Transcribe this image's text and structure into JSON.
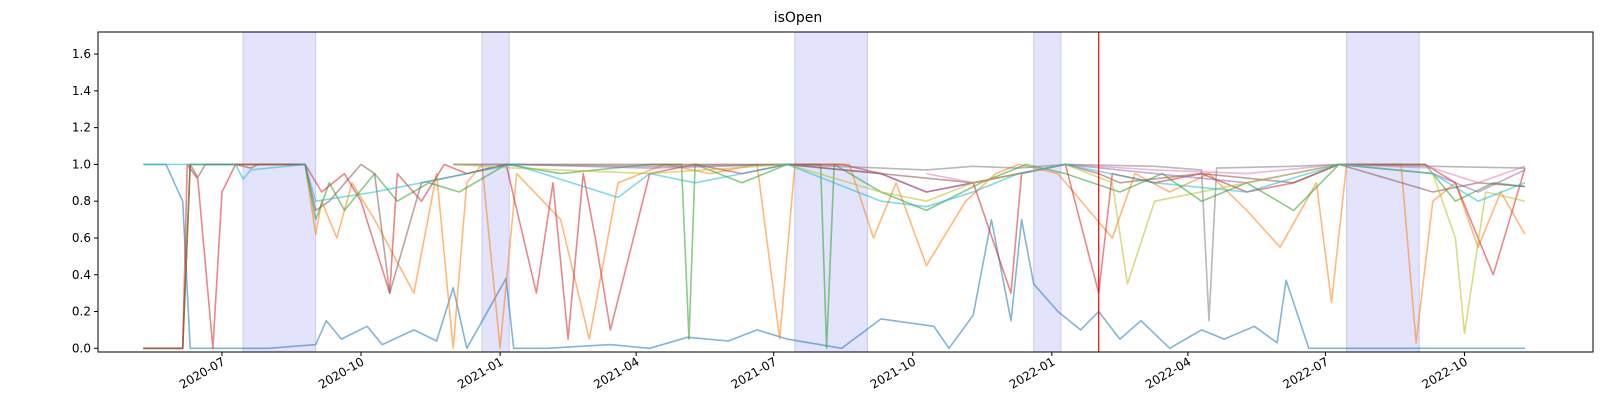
{
  "chart_data": {
    "type": "line",
    "title": "isOpen",
    "xlabel": "",
    "ylabel": "",
    "x_type": "date",
    "xlim": [
      "2020-04-10",
      "2022-12-25"
    ],
    "ylim": [
      -0.02,
      1.72
    ],
    "x_ticks": [
      "2020-07",
      "2020-10",
      "2021-01",
      "2021-04",
      "2021-07",
      "2021-10",
      "2022-01",
      "2022-04",
      "2022-07",
      "2022-10"
    ],
    "y_ticks": [
      "0.0",
      "0.2",
      "0.4",
      "0.6",
      "0.8",
      "1.0",
      "1.2",
      "1.4",
      "1.6"
    ],
    "grid": false,
    "legend": "none",
    "shaded_spans": [
      {
        "start": "2020-07-15",
        "end": "2020-09-01"
      },
      {
        "start": "2020-12-20",
        "end": "2021-01-07"
      },
      {
        "start": "2021-07-15",
        "end": "2021-09-01"
      },
      {
        "start": "2021-12-20",
        "end": "2022-01-07"
      },
      {
        "start": "2022-07-15",
        "end": "2022-09-01"
      }
    ],
    "shade_color": "#e3e3fc",
    "shade_edge": "#c9c9f5",
    "vline": {
      "x": "2022-02-01",
      "color": "#ff0000"
    },
    "series": [
      {
        "color": "#1f77b4",
        "dates": [
          "2020-05-10",
          "2020-05-25",
          "2020-06-05",
          "2020-06-10",
          "2020-07-10",
          "2020-08-01",
          "2020-09-01",
          "2020-09-08",
          "2020-09-18",
          "2020-10-05",
          "2020-10-15",
          "2020-11-05",
          "2020-11-20",
          "2020-12-01",
          "2020-12-10",
          "2021-01-05",
          "2021-01-10",
          "2021-02-01",
          "2021-03-15",
          "2021-04-10",
          "2021-05-05",
          "2021-06-01",
          "2021-06-20",
          "2021-07-10",
          "2021-08-15",
          "2021-09-10",
          "2021-10-15",
          "2021-10-25",
          "2021-11-10",
          "2021-11-22",
          "2021-12-05",
          "2021-12-12",
          "2021-12-20",
          "2022-01-05",
          "2022-01-20",
          "2022-02-01",
          "2022-02-15",
          "2022-03-01",
          "2022-03-20",
          "2022-04-10",
          "2022-04-25",
          "2022-05-15",
          "2022-05-30",
          "2022-06-05",
          "2022-06-20",
          "2022-07-20",
          "2022-08-25",
          "2022-09-10",
          "2022-10-15",
          "2022-11-10"
        ],
        "values": [
          1.0,
          1.0,
          0.8,
          0.0,
          0.0,
          0.0,
          0.02,
          0.15,
          0.05,
          0.12,
          0.02,
          0.1,
          0.04,
          0.33,
          0.0,
          0.38,
          0.0,
          0.0,
          0.02,
          0.0,
          0.06,
          0.04,
          0.1,
          0.05,
          0.0,
          0.16,
          0.12,
          0.0,
          0.18,
          0.7,
          0.15,
          0.7,
          0.35,
          0.2,
          0.1,
          0.2,
          0.05,
          0.15,
          0.0,
          0.1,
          0.05,
          0.12,
          0.03,
          0.37,
          0.0,
          0.0,
          0.0,
          0.0,
          0.0,
          0.0
        ]
      },
      {
        "color": "#ff7f0e",
        "dates": [
          "2020-05-10",
          "2020-06-05",
          "2020-06-10",
          "2020-07-10",
          "2020-07-20",
          "2020-08-25",
          "2020-09-01",
          "2020-09-05",
          "2020-09-15",
          "2020-09-25",
          "2020-10-10",
          "2020-11-05",
          "2020-11-20",
          "2020-12-01",
          "2020-12-10",
          "2020-12-20",
          "2021-01-01",
          "2021-01-12",
          "2021-02-10",
          "2021-03-01",
          "2021-03-20",
          "2021-04-20",
          "2021-05-20",
          "2021-06-20",
          "2021-07-05",
          "2021-07-15",
          "2021-08-20",
          "2021-09-05",
          "2021-09-20",
          "2021-10-10",
          "2021-11-05",
          "2021-11-25",
          "2021-12-10",
          "2022-01-05",
          "2022-02-10",
          "2022-02-25",
          "2022-03-20",
          "2022-04-15",
          "2022-05-10",
          "2022-06-01",
          "2022-06-25",
          "2022-07-05",
          "2022-07-15",
          "2022-08-20",
          "2022-08-30",
          "2022-09-10",
          "2022-09-25",
          "2022-10-10",
          "2022-10-25",
          "2022-11-10"
        ],
        "values": [
          0.0,
          0.0,
          1.0,
          1.0,
          1.0,
          1.0,
          0.62,
          0.8,
          0.6,
          0.9,
          0.7,
          0.3,
          0.95,
          0.0,
          0.9,
          1.0,
          0.0,
          0.95,
          0.7,
          0.05,
          0.9,
          1.0,
          0.95,
          1.0,
          0.05,
          1.0,
          1.0,
          0.6,
          0.9,
          0.45,
          0.8,
          0.95,
          1.0,
          0.95,
          0.6,
          0.95,
          0.85,
          0.95,
          0.75,
          0.55,
          0.9,
          0.25,
          1.0,
          1.0,
          0.03,
          0.8,
          0.9,
          0.55,
          0.85,
          0.62
        ]
      },
      {
        "color": "#2ca02c",
        "dates": [
          "2020-05-10",
          "2020-06-05",
          "2020-06-10",
          "2020-07-10",
          "2020-08-25",
          "2020-09-01",
          "2020-09-10",
          "2020-09-20",
          "2020-10-10",
          "2020-10-25",
          "2020-11-15",
          "2020-12-05",
          "2021-01-05",
          "2021-02-10",
          "2021-04-10",
          "2021-05-01",
          "2021-05-06",
          "2021-05-10",
          "2021-06-10",
          "2021-07-10",
          "2021-08-01",
          "2021-08-05",
          "2021-08-10",
          "2021-09-10",
          "2021-10-10",
          "2021-11-15",
          "2021-12-15",
          "2022-01-10",
          "2022-02-15",
          "2022-03-15",
          "2022-04-10",
          "2022-05-10",
          "2022-06-10",
          "2022-07-10",
          "2022-09-05",
          "2022-09-25",
          "2022-10-20",
          "2022-11-10"
        ],
        "values": [
          0.0,
          0.0,
          1.0,
          1.0,
          1.0,
          0.7,
          0.9,
          0.75,
          0.95,
          0.8,
          0.9,
          0.85,
          1.0,
          0.95,
          1.0,
          1.0,
          0.05,
          1.0,
          0.9,
          1.0,
          1.0,
          0.0,
          1.0,
          0.85,
          0.75,
          0.9,
          1.0,
          0.95,
          0.85,
          0.95,
          0.8,
          0.9,
          0.75,
          1.0,
          1.0,
          0.8,
          0.9,
          0.88
        ]
      },
      {
        "color": "#d62728",
        "dates": [
          "2020-05-10",
          "2020-06-05",
          "2020-06-08",
          "2020-06-15",
          "2020-06-25",
          "2020-07-01",
          "2020-07-10",
          "2020-08-25",
          "2020-09-05",
          "2020-09-20",
          "2020-10-01",
          "2020-10-20",
          "2020-10-25",
          "2020-11-10",
          "2020-11-25",
          "2020-12-10",
          "2021-01-05",
          "2021-01-25",
          "2021-02-05",
          "2021-02-15",
          "2021-02-25",
          "2021-03-05",
          "2021-03-15",
          "2021-04-10",
          "2021-05-10",
          "2021-06-10",
          "2021-07-10",
          "2021-08-15",
          "2021-09-10",
          "2021-10-10",
          "2021-11-10",
          "2021-12-05",
          "2021-12-12",
          "2022-01-10",
          "2022-02-01",
          "2022-02-10",
          "2022-03-10",
          "2022-04-10",
          "2022-05-10",
          "2022-06-10",
          "2022-07-10",
          "2022-09-05",
          "2022-09-25",
          "2022-10-20",
          "2022-11-10"
        ],
        "values": [
          0.0,
          0.0,
          1.0,
          0.92,
          0.0,
          0.85,
          1.0,
          1.0,
          0.85,
          0.95,
          0.8,
          0.3,
          0.95,
          0.8,
          1.0,
          0.95,
          1.0,
          0.3,
          0.9,
          0.05,
          0.95,
          0.6,
          0.1,
          0.95,
          1.0,
          0.95,
          1.0,
          1.0,
          0.95,
          0.85,
          0.9,
          0.3,
          0.95,
          1.0,
          0.3,
          0.95,
          0.9,
          0.95,
          0.85,
          0.9,
          1.0,
          1.0,
          0.9,
          0.4,
          0.98
        ]
      },
      {
        "color": "#9467bd",
        "dates": [
          "2020-12-01",
          "2021-01-10",
          "2021-04-10",
          "2021-07-10",
          "2021-09-10",
          "2021-10-10",
          "2021-11-10",
          "2021-12-10",
          "2022-01-10",
          "2022-03-10",
          "2022-05-10",
          "2022-07-10",
          "2022-09-10",
          "2022-10-10",
          "2022-11-10"
        ],
        "values": [
          1.0,
          1.0,
          0.98,
          1.0,
          0.95,
          0.85,
          0.9,
          0.95,
          1.0,
          0.95,
          0.9,
          1.0,
          0.95,
          0.85,
          0.97
        ]
      },
      {
        "color": "#8c564b",
        "dates": [
          "2020-05-10",
          "2020-06-05",
          "2020-06-10",
          "2020-06-15",
          "2020-06-20",
          "2020-07-10",
          "2020-07-20",
          "2020-07-25",
          "2020-08-25",
          "2020-09-01",
          "2020-09-10",
          "2020-10-01",
          "2020-10-10",
          "2020-10-20",
          "2020-11-10",
          "2020-12-10",
          "2021-01-05",
          "2021-04-10",
          "2021-07-10",
          "2021-09-10",
          "2021-11-10",
          "2022-01-10",
          "2022-02-01",
          "2022-02-15",
          "2022-04-10",
          "2022-06-10",
          "2022-07-10",
          "2022-09-10",
          "2022-10-10",
          "2022-11-10"
        ],
        "values": [
          0.0,
          0.0,
          1.0,
          0.93,
          1.0,
          1.0,
          0.98,
          1.0,
          1.0,
          0.75,
          0.8,
          1.0,
          0.95,
          0.3,
          0.9,
          0.95,
          1.0,
          1.0,
          1.0,
          0.95,
          0.9,
          1.0,
          0.95,
          0.9,
          0.95,
          0.9,
          1.0,
          0.85,
          0.9,
          0.88
        ]
      },
      {
        "color": "#e377c2",
        "dates": [
          "2021-10-10",
          "2021-11-10",
          "2021-12-10",
          "2022-01-10",
          "2022-03-10",
          "2022-05-10",
          "2022-07-10",
          "2022-09-10",
          "2022-10-10",
          "2022-11-10"
        ],
        "values": [
          0.95,
          0.9,
          0.95,
          1.0,
          0.97,
          0.95,
          1.0,
          0.98,
          0.9,
          0.99
        ]
      },
      {
        "color": "#7f7f7f",
        "dates": [
          "2020-12-01",
          "2021-01-10",
          "2021-04-10",
          "2021-07-10",
          "2021-09-10",
          "2021-10-10",
          "2021-11-10",
          "2021-12-10",
          "2022-01-10",
          "2022-03-10",
          "2022-04-10",
          "2022-04-15",
          "2022-04-20",
          "2022-06-10",
          "2022-07-10",
          "2022-09-10",
          "2022-11-10"
        ],
        "values": [
          1.0,
          1.0,
          0.99,
          1.0,
          0.98,
          0.97,
          0.99,
          0.98,
          1.0,
          0.99,
          0.97,
          0.15,
          0.98,
          0.99,
          1.0,
          0.99,
          0.98
        ]
      },
      {
        "color": "#bcbd22",
        "dates": [
          "2020-12-01",
          "2021-01-10",
          "2021-04-10",
          "2021-07-10",
          "2021-09-10",
          "2021-10-10",
          "2021-11-10",
          "2021-12-10",
          "2022-01-10",
          "2022-02-10",
          "2022-02-20",
          "2022-03-10",
          "2022-05-10",
          "2022-07-10",
          "2022-09-10",
          "2022-09-25",
          "2022-10-01",
          "2022-10-15",
          "2022-11-10"
        ],
        "values": [
          1.0,
          0.98,
          0.95,
          1.0,
          0.85,
          0.8,
          0.9,
          0.95,
          1.0,
          0.9,
          0.35,
          0.8,
          0.9,
          1.0,
          0.95,
          0.6,
          0.08,
          0.85,
          0.8
        ]
      },
      {
        "color": "#17becf",
        "dates": [
          "2020-05-10",
          "2020-06-05",
          "2020-06-10",
          "2020-07-10",
          "2020-07-15",
          "2020-07-20",
          "2020-08-25",
          "2020-09-01",
          "2020-10-10",
          "2020-11-10",
          "2020-12-10",
          "2021-01-10",
          "2021-03-20",
          "2021-04-10",
          "2021-05-10",
          "2021-06-10",
          "2021-07-10",
          "2021-09-10",
          "2021-10-10",
          "2021-11-10",
          "2021-12-10",
          "2022-01-10",
          "2022-03-10",
          "2022-05-10",
          "2022-07-10",
          "2022-09-10",
          "2022-10-10",
          "2022-11-10"
        ],
        "values": [
          1.0,
          1.0,
          1.0,
          1.0,
          0.92,
          0.97,
          1.0,
          0.8,
          0.85,
          0.9,
          0.95,
          1.0,
          0.82,
          0.95,
          0.9,
          0.95,
          1.0,
          0.8,
          0.77,
          0.85,
          0.95,
          1.0,
          0.9,
          0.85,
          1.0,
          0.95,
          0.8,
          0.9
        ]
      }
    ]
  }
}
